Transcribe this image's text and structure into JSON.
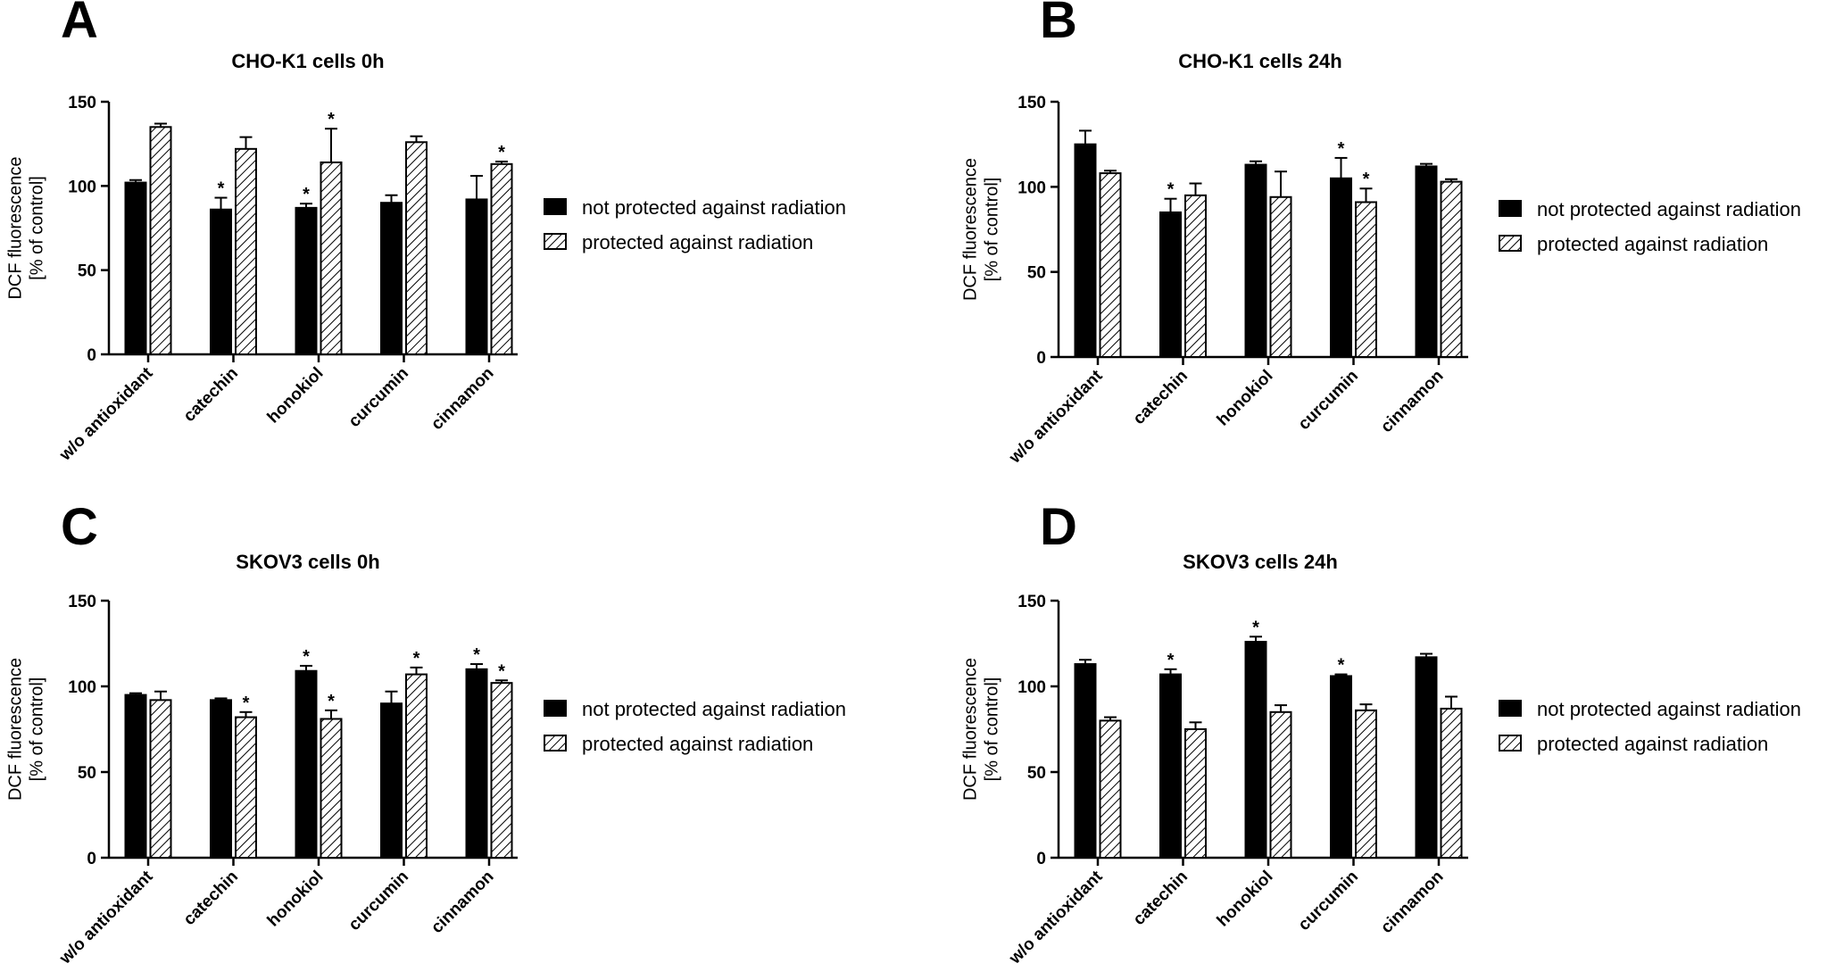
{
  "legend": {
    "not_protected": "not protected against radiation",
    "protected": "protected against radiation"
  },
  "colors": {
    "not_protected_fill": "#000000",
    "protected_fill": "hatched (black diagonal lines on white)",
    "axis": "#000000",
    "background": "#ffffff"
  },
  "chart_data": [
    {
      "panel": "A",
      "type": "bar",
      "title": "CHO-K1 cells 0h",
      "ylabel": [
        "DCF fluorescence",
        "[% of control]"
      ],
      "ylim": [
        0,
        150
      ],
      "yticks": [
        0,
        50,
        100,
        150
      ],
      "categories": [
        "w/o antioxidant",
        "catechin",
        "honokiol",
        "curcumin",
        "cinnamon"
      ],
      "series": [
        {
          "name": "not protected against radiation",
          "values": [
            102,
            86,
            87,
            90,
            92
          ],
          "errors": [
            1.5,
            7,
            2.5,
            4.5,
            14
          ],
          "significant": [
            false,
            true,
            true,
            false,
            false
          ]
        },
        {
          "name": "protected against radiation",
          "values": [
            135,
            122,
            114,
            126,
            113
          ],
          "errors": [
            2,
            7,
            20,
            3.5,
            1.5
          ],
          "significant": [
            false,
            false,
            true,
            false,
            true
          ]
        }
      ]
    },
    {
      "panel": "B",
      "type": "bar",
      "title": "CHO-K1 cells 24h",
      "ylabel": [
        "DCF fluorescence",
        "[% of control]"
      ],
      "ylim": [
        0,
        150
      ],
      "yticks": [
        0,
        50,
        100,
        150
      ],
      "categories": [
        "w/o antioxidant",
        "catechin",
        "honokiol",
        "curcumin",
        "cinnamon"
      ],
      "series": [
        {
          "name": "not protected against radiation",
          "values": [
            125,
            85,
            113,
            105,
            112
          ],
          "errors": [
            8,
            8,
            2,
            12,
            1.5
          ],
          "significant": [
            false,
            true,
            false,
            true,
            false
          ]
        },
        {
          "name": "protected against radiation",
          "values": [
            108,
            95,
            94,
            91,
            103
          ],
          "errors": [
            1.5,
            7,
            15,
            8,
            1.5
          ],
          "significant": [
            false,
            false,
            false,
            true,
            false
          ]
        }
      ]
    },
    {
      "panel": "C",
      "type": "bar",
      "title": "SKOV3 cells 0h",
      "ylabel": [
        "DCF fluorescence",
        "[% of control]"
      ],
      "ylim": [
        0,
        150
      ],
      "yticks": [
        0,
        50,
        100,
        150
      ],
      "categories": [
        "w/o antioxidant",
        "catechin",
        "honokiol",
        "curcumin",
        "cinnamon"
      ],
      "series": [
        {
          "name": "not protected against radiation",
          "values": [
            95,
            92,
            109,
            90,
            110
          ],
          "errors": [
            1,
            1,
            3,
            7,
            3
          ],
          "significant": [
            false,
            false,
            true,
            false,
            true
          ]
        },
        {
          "name": "protected against radiation",
          "values": [
            92,
            82,
            81,
            107,
            102
          ],
          "errors": [
            5,
            3,
            5,
            4,
            1.5
          ],
          "significant": [
            false,
            true,
            true,
            true,
            true
          ]
        }
      ]
    },
    {
      "panel": "D",
      "type": "bar",
      "title": "SKOV3 cells 24h",
      "ylabel": [
        "DCF fluorescence",
        "[% of control]"
      ],
      "ylim": [
        0,
        150
      ],
      "yticks": [
        0,
        50,
        100,
        150
      ],
      "categories": [
        "w/o antioxidant",
        "catechin",
        "honokiol",
        "curcumin",
        "cinnamon"
      ],
      "series": [
        {
          "name": "not protected against radiation",
          "values": [
            113,
            107,
            126,
            106,
            117
          ],
          "errors": [
            2.5,
            3,
            3,
            1,
            2
          ],
          "significant": [
            false,
            true,
            true,
            true,
            false
          ]
        },
        {
          "name": "protected against radiation",
          "values": [
            80,
            75,
            85,
            86,
            87
          ],
          "errors": [
            2,
            4,
            4,
            3.5,
            7
          ],
          "significant": [
            false,
            false,
            false,
            false,
            false
          ]
        }
      ]
    }
  ]
}
